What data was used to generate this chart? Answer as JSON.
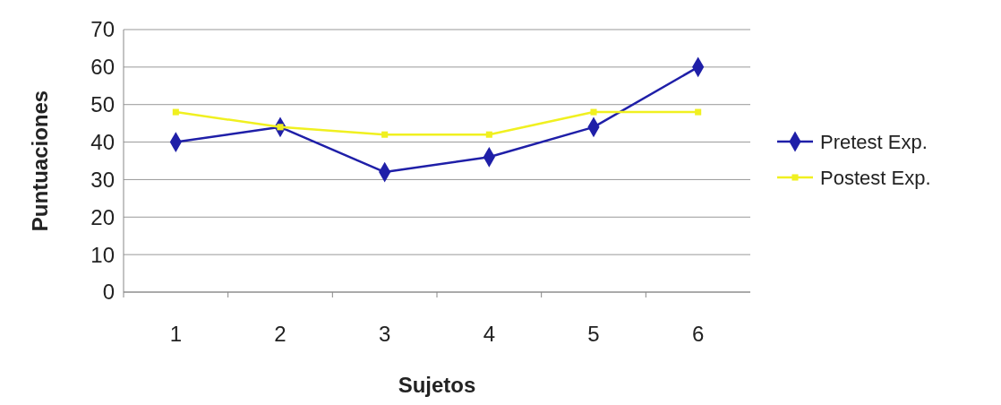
{
  "chart_data": {
    "type": "line",
    "xlabel": "Sujetos",
    "ylabel": "Puntuaciones",
    "categories": [
      "1",
      "2",
      "3",
      "4",
      "5",
      "6"
    ],
    "series": [
      {
        "name": "Pretest Exp.",
        "color": "#1f1fa8",
        "values": [
          40,
          44,
          32,
          36,
          44,
          60
        ],
        "marker": "diamond"
      },
      {
        "name": "Postest Exp.",
        "color": "#f0f020",
        "values": [
          48,
          44,
          42,
          42,
          48,
          48
        ],
        "marker": "square"
      }
    ],
    "ylim": [
      0,
      70
    ],
    "yticks": [
      0,
      10,
      20,
      30,
      40,
      50,
      60,
      70
    ],
    "grid": "y",
    "legend": "right"
  }
}
